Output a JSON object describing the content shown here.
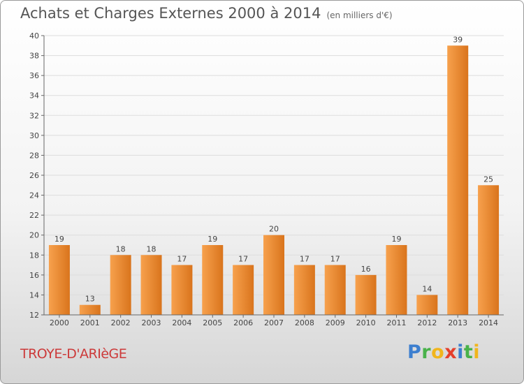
{
  "chart_data": {
    "type": "bar",
    "title": "Achats et Charges Externes 2000 à 2014",
    "subtitle": "(en milliers d'€)",
    "categories": [
      "2000",
      "2001",
      "2002",
      "2003",
      "2004",
      "2005",
      "2006",
      "2007",
      "2008",
      "2009",
      "2010",
      "2011",
      "2012",
      "2013",
      "2014"
    ],
    "values": [
      19,
      13,
      18,
      18,
      17,
      19,
      17,
      20,
      17,
      17,
      16,
      19,
      14,
      39,
      25
    ],
    "ylim": [
      12,
      40
    ],
    "yticks": [
      12,
      14,
      16,
      18,
      20,
      22,
      24,
      26,
      28,
      30,
      32,
      34,
      36,
      38,
      40
    ],
    "grid": true,
    "colors": {
      "bar_light": "#f7a14d",
      "bar_dark": "#d9741c",
      "grid": "#dddddd"
    }
  },
  "footer": {
    "town": "TROYE-D'ARIèGE",
    "brand": [
      {
        "char": "P",
        "color": "#3d7fcf"
      },
      {
        "char": "r",
        "color": "#49b24a"
      },
      {
        "char": "o",
        "color": "#f1b51d"
      },
      {
        "char": "x",
        "color": "#e53f2b"
      },
      {
        "char": "i",
        "color": "#3d7fcf"
      },
      {
        "char": "t",
        "color": "#49b24a"
      },
      {
        "char": "i",
        "color": "#f1b51d"
      }
    ]
  }
}
